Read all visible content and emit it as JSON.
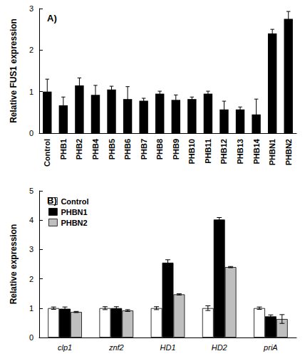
{
  "chart_data": [
    {
      "type": "bar",
      "title": "A)",
      "y_label": "Relative FUS1 expression",
      "categories": [
        "Control",
        "PHB1",
        "PHB2",
        "PHB4",
        "PHB5",
        "PHB6",
        "PHB7",
        "PHB8",
        "PHB9",
        "PHB10",
        "PHB11",
        "PHB12",
        "PHB13",
        "PHB14",
        "PHBN1",
        "PHBN2"
      ],
      "values": [
        1.0,
        0.67,
        1.15,
        0.92,
        1.05,
        0.82,
        0.78,
        0.95,
        0.8,
        0.82,
        0.95,
        0.57,
        0.57,
        0.45,
        2.4,
        2.75
      ],
      "errors": [
        0.3,
        0.2,
        0.18,
        0.23,
        0.08,
        0.3,
        0.06,
        0.06,
        0.12,
        0.05,
        0.06,
        0.2,
        0.06,
        0.37,
        0.1,
        0.18
      ],
      "color": "#000000",
      "ylim": [
        0,
        3
      ],
      "yticks": [
        0,
        1,
        2,
        3
      ],
      "grid": false
    },
    {
      "type": "bar",
      "title": "B)",
      "y_label": "Relative expression",
      "categories": [
        "clp1",
        "znf2",
        "HD1",
        "HD2",
        "priA"
      ],
      "series": [
        {
          "name": "Control",
          "color": "#ffffff",
          "values": [
            1.0,
            1.0,
            1.0,
            1.0,
            1.0
          ],
          "errors": [
            0.04,
            0.05,
            0.05,
            0.08,
            0.04
          ]
        },
        {
          "name": "PHBN1",
          "color": "#000000",
          "values": [
            0.98,
            1.0,
            2.55,
            4.02,
            0.72
          ],
          "errors": [
            0.06,
            0.05,
            0.1,
            0.07,
            0.05
          ]
        },
        {
          "name": "PHBN2",
          "color": "#bfbfbf",
          "values": [
            0.87,
            0.92,
            1.47,
            2.4,
            0.63
          ],
          "errors": [
            0.02,
            0.03,
            0.02,
            0.02,
            0.15
          ]
        }
      ],
      "ylim": [
        0,
        5
      ],
      "yticks": [
        0,
        1,
        2,
        3,
        4,
        5
      ],
      "grid": false,
      "legend": "top-left"
    }
  ]
}
